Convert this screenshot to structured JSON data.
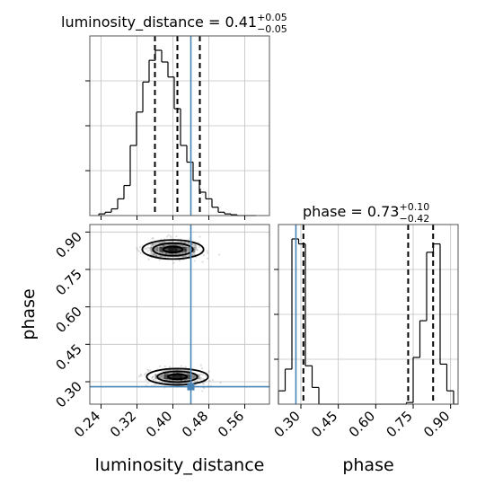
{
  "chart_data": [
    {
      "panel": "luminosity_distance marginal",
      "type": "histogram",
      "title": {
        "main": "luminosity_distance = 0.41",
        "sup": "+0.05",
        "sub": "−0.05"
      },
      "xlim": [
        0.215,
        0.615
      ],
      "xticks": [
        0.24,
        0.32,
        0.4,
        0.48,
        0.56
      ],
      "bin_edges": [
        0.235,
        0.249,
        0.263,
        0.277,
        0.291,
        0.305,
        0.319,
        0.333,
        0.347,
        0.361,
        0.375,
        0.389,
        0.403,
        0.417,
        0.431,
        0.445,
        0.459,
        0.473,
        0.487,
        0.501,
        0.515,
        0.529,
        0.543,
        0.557,
        0.571,
        0.585
      ],
      "counts": [
        0.01,
        0.02,
        0.04,
        0.1,
        0.18,
        0.42,
        0.62,
        0.8,
        0.93,
        0.99,
        0.92,
        0.83,
        0.64,
        0.42,
        0.32,
        0.21,
        0.14,
        0.1,
        0.05,
        0.02,
        0.01,
        0.005,
        0.0,
        0.0,
        0.0
      ],
      "quantile_lines": [
        0.36,
        0.41,
        0.46
      ],
      "truth": 0.44,
      "grid": true
    },
    {
      "panel": "phase vs luminosity_distance",
      "type": "2d-density",
      "xlabel": "luminosity_distance",
      "ylabel": "phase",
      "xlim": [
        0.215,
        0.615
      ],
      "ylim": [
        0.21,
        0.93
      ],
      "xticks": [
        0.24,
        0.32,
        0.4,
        0.48,
        0.56
      ],
      "yticks": [
        0.3,
        0.45,
        0.6,
        0.75,
        0.9
      ],
      "modes": [
        {
          "x": 0.4,
          "y": 0.83,
          "sx": 0.05,
          "sy": 0.028
        },
        {
          "x": 0.41,
          "y": 0.32,
          "sx": 0.05,
          "sy": 0.024
        }
      ],
      "truth": {
        "x": 0.44,
        "y": 0.28
      },
      "grid": true
    },
    {
      "panel": "phase marginal",
      "type": "histogram",
      "title": {
        "main": "phase = 0.73",
        "sup": "+0.10",
        "sub": "−0.42"
      },
      "xlabel": "phase",
      "xlim": [
        0.21,
        0.93
      ],
      "xticks": [
        0.3,
        0.45,
        0.6,
        0.75,
        0.9
      ],
      "bin_edges": [
        0.21,
        0.237,
        0.264,
        0.291,
        0.318,
        0.345,
        0.372,
        0.399,
        0.426,
        0.453,
        0.48,
        0.507,
        0.534,
        0.561,
        0.588,
        0.615,
        0.642,
        0.669,
        0.696,
        0.723,
        0.75,
        0.777,
        0.804,
        0.831,
        0.858,
        0.885,
        0.912,
        0.93
      ],
      "counts": [
        0.08,
        0.21,
        0.99,
        0.96,
        0.23,
        0.1,
        0.0,
        0.0,
        0.0,
        0.0,
        0.0,
        0.0,
        0.0,
        0.0,
        0.0,
        0.0,
        0.0,
        0.0,
        0.0,
        0.01,
        0.28,
        0.5,
        0.91,
        0.96,
        0.24,
        0.08,
        0.0
      ],
      "quantile_lines": [
        0.31,
        0.73,
        0.83
      ],
      "truth": 0.28,
      "grid": true
    }
  ],
  "colors": {
    "hist": "#000000",
    "quantile": "#000000",
    "truth": "#4682b4",
    "grid": "#c0c0c0"
  }
}
